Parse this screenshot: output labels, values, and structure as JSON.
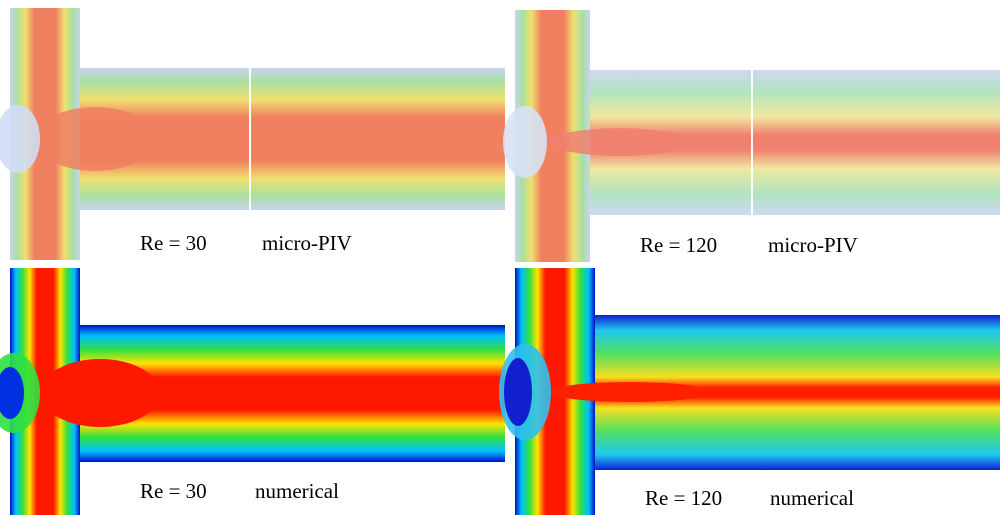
{
  "panels": [
    {
      "re": "Re = 30",
      "method": "micro-PIV"
    },
    {
      "re": "Re = 120",
      "method": "micro-PIV"
    },
    {
      "re": "Re = 30",
      "method": "numerical"
    },
    {
      "re": "Re = 120",
      "method": "numerical"
    }
  ]
}
